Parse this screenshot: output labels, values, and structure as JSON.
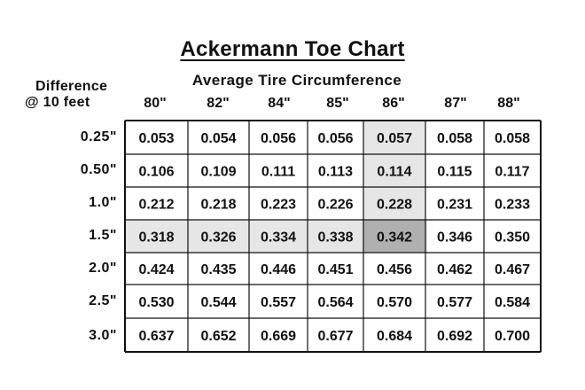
{
  "chart_data": {
    "type": "table",
    "title": "Ackermann Toe Chart",
    "column_header_title": "Average Tire Circumference",
    "row_header_title_line1": "Difference",
    "row_header_title_line2": "@ 10 feet",
    "columns": [
      "80\"",
      "82\"",
      "84\"",
      "85\"",
      "86\"",
      "87\"",
      "88\""
    ],
    "rows": [
      "0.25\"",
      "0.50\"",
      "1.0\"",
      "1.5\"",
      "2.0\"",
      "2.5\"",
      "3.0\""
    ],
    "values": [
      [
        "0.053",
        "0.054",
        "0.056",
        "0.056",
        "0.057",
        "0.058",
        "0.058"
      ],
      [
        "0.106",
        "0.109",
        "0.111",
        "0.113",
        "0.114",
        "0.115",
        "0.117"
      ],
      [
        "0.212",
        "0.218",
        "0.223",
        "0.226",
        "0.228",
        "0.231",
        "0.233"
      ],
      [
        "0.318",
        "0.326",
        "0.334",
        "0.338",
        "0.342",
        "0.346",
        "0.350"
      ],
      [
        "0.424",
        "0.435",
        "0.446",
        "0.451",
        "0.456",
        "0.462",
        "0.467"
      ],
      [
        "0.530",
        "0.544",
        "0.557",
        "0.564",
        "0.570",
        "0.577",
        "0.584"
      ],
      [
        "0.637",
        "0.652",
        "0.669",
        "0.677",
        "0.684",
        "0.692",
        "0.700"
      ]
    ],
    "highlighted_row": 3,
    "highlighted_column": 4,
    "highlight_color": "#e6e6e6",
    "intersection_color": "#b0b0b0"
  }
}
